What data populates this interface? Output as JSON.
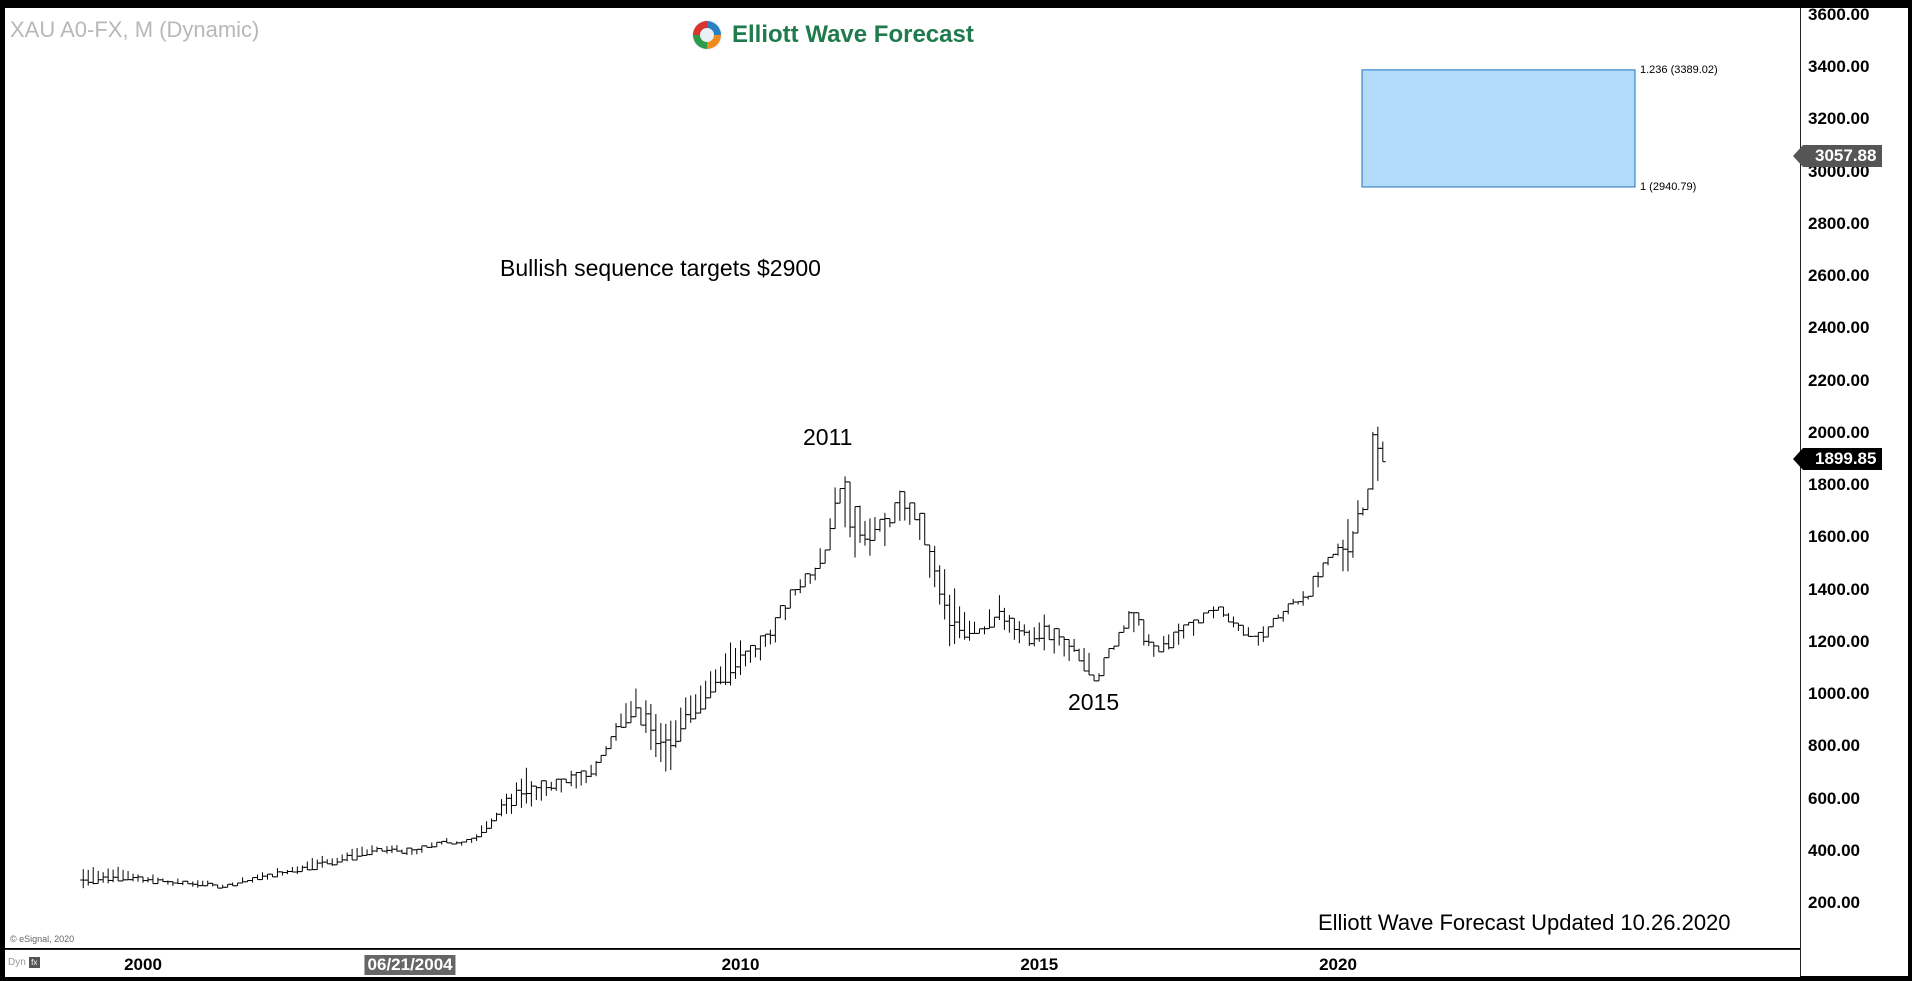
{
  "header": {
    "symbol": "XAU A0-FX, M (Dynamic)",
    "logo_text": "Elliott Wave Forecast",
    "logo_icon": "swirl-logo-icon"
  },
  "annotations": {
    "headline": "Bullish sequence targets $2900",
    "label_2011": "2011",
    "label_2015": "2015",
    "footer": "Elliott Wave Forecast Updated 10.26.2020",
    "copyright": "© eSignal, 2020",
    "dyn": "Dyn",
    "dyn_icon_text": "fx"
  },
  "fib_zone": {
    "upper_label": "1.236 (3389.02)",
    "lower_label": "1 (2940.79)",
    "upper_value": 3389.02,
    "lower_value": 2940.79,
    "fill_color": "#b3dcfb",
    "border_color": "#1e73be"
  },
  "price_tags": {
    "target_tag": "3057.88",
    "target_value": 3057.88,
    "last_tag": "1899.85",
    "last_value": 1899.85
  },
  "x_axis": {
    "cursor_label": "06/21/2004",
    "cursor_year": 2004.47,
    "ticks": [
      {
        "year": 2000,
        "label": "2000"
      },
      {
        "year": 2010,
        "label": "2010"
      },
      {
        "year": 2015,
        "label": "2015"
      },
      {
        "year": 2020,
        "label": "2020"
      }
    ]
  },
  "chart_data": {
    "type": "ohlc-bar",
    "frequency": "monthly",
    "xlim": [
      1999.2,
      2020.9
    ],
    "ylim": [
      130,
      3625
    ],
    "y_ticks": [
      "200.00",
      "400.00",
      "600.00",
      "800.00",
      "1000.00",
      "1200.00",
      "1400.00",
      "1600.00",
      "1800.00",
      "2000.00",
      "2200.00",
      "2400.00",
      "2600.00",
      "2800.00",
      "3000.00",
      "3200.00",
      "3400.00",
      "3600.00"
    ],
    "anchors": [
      [
        1999.0,
        288,
        340,
        255
      ],
      [
        1999.7,
        300,
        340,
        285
      ],
      [
        2000.0,
        285,
        315,
        275
      ],
      [
        2001.0,
        270,
        290,
        255
      ],
      [
        2001.3,
        262,
        280,
        255
      ],
      [
        2002.0,
        300,
        320,
        285
      ],
      [
        2003.0,
        350,
        390,
        330
      ],
      [
        2004.0,
        400,
        430,
        380
      ],
      [
        2004.5,
        400,
        420,
        380
      ],
      [
        2005.0,
        430,
        450,
        415
      ],
      [
        2005.5,
        440,
        460,
        420
      ],
      [
        2006.0,
        560,
        600,
        520
      ],
      [
        2006.4,
        650,
        730,
        560
      ],
      [
        2006.5,
        630,
        680,
        560
      ],
      [
        2007.0,
        670,
        700,
        620
      ],
      [
        2007.5,
        700,
        730,
        650
      ],
      [
        2008.0,
        900,
        960,
        850
      ],
      [
        2008.2,
        950,
        1035,
        890
      ],
      [
        2008.8,
        760,
        900,
        680
      ],
      [
        2009.0,
        900,
        1000,
        850
      ],
      [
        2009.9,
        1100,
        1225,
        1040
      ],
      [
        2010.5,
        1250,
        1265,
        1160
      ],
      [
        2010.9,
        1400,
        1430,
        1310
      ],
      [
        2011.4,
        1550,
        1580,
        1460
      ],
      [
        2011.67,
        1830,
        1920,
        1700
      ],
      [
        2011.9,
        1650,
        1800,
        1520
      ],
      [
        2012.3,
        1620,
        1700,
        1530
      ],
      [
        2012.7,
        1750,
        1800,
        1650
      ],
      [
        2013.0,
        1660,
        1700,
        1560
      ],
      [
        2013.3,
        1400,
        1600,
        1300
      ],
      [
        2013.5,
        1240,
        1420,
        1180
      ],
      [
        2014.0,
        1260,
        1330,
        1200
      ],
      [
        2014.3,
        1300,
        1390,
        1260
      ],
      [
        2014.9,
        1190,
        1260,
        1130
      ],
      [
        2015.1,
        1250,
        1310,
        1170
      ],
      [
        2015.8,
        1100,
        1190,
        1080
      ],
      [
        2015.95,
        1060,
        1110,
        1045
      ],
      [
        2016.5,
        1320,
        1375,
        1250
      ],
      [
        2016.95,
        1150,
        1220,
        1120
      ],
      [
        2017.5,
        1270,
        1300,
        1200
      ],
      [
        2018.0,
        1330,
        1365,
        1270
      ],
      [
        2018.6,
        1200,
        1240,
        1160
      ],
      [
        2019.0,
        1300,
        1340,
        1260
      ],
      [
        2019.5,
        1400,
        1450,
        1340
      ],
      [
        2019.9,
        1520,
        1560,
        1450
      ],
      [
        2020.2,
        1600,
        1700,
        1450
      ],
      [
        2020.5,
        1800,
        1820,
        1700
      ],
      [
        2020.58,
        1970,
        2075,
        1760
      ],
      [
        2020.75,
        1880,
        1990,
        1850
      ],
      [
        2020.83,
        1899.85,
        1935,
        1860
      ]
    ]
  }
}
